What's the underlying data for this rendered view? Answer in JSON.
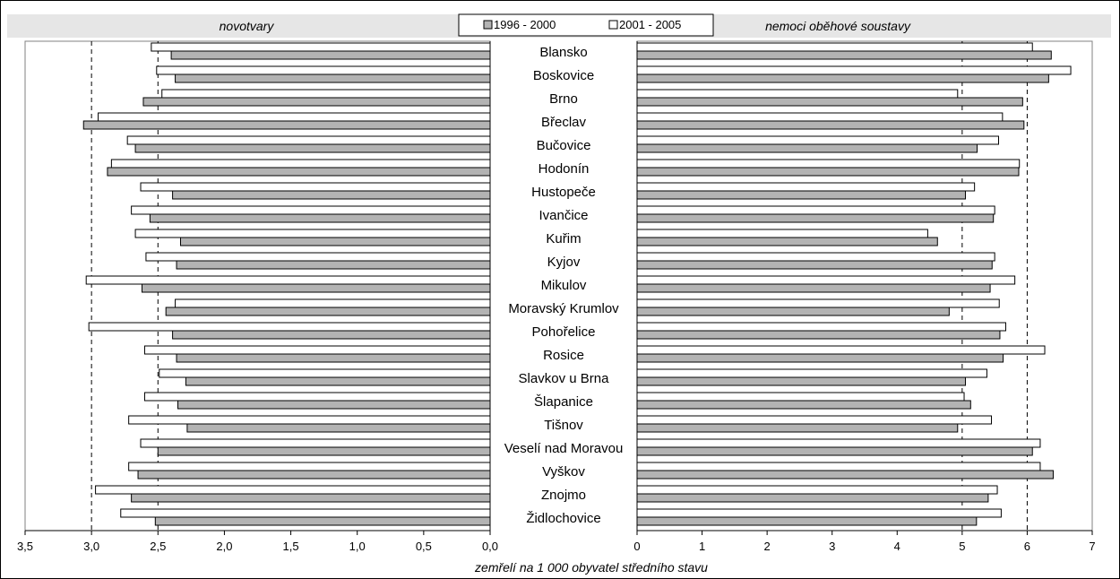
{
  "chart_data": {
    "type": "bar",
    "orientation": "horizontal",
    "xlabel": "zemřelí na 1 000 obyvatel středního stavu",
    "legend": {
      "placement": "top-center",
      "entries": [
        "1996 - 2000",
        "2001 - 2005"
      ]
    },
    "colors": {
      "s1996": "#b3b3b3",
      "s2001": "#ffffff",
      "outline": "#000000",
      "plot_bg": "#e6e6e6"
    },
    "categories": [
      "Blansko",
      "Boskovice",
      "Brno",
      "Břeclav",
      "Bučovice",
      "Hodonín",
      "Hustopeče",
      "Ivančice",
      "Kuřim",
      "Kyjov",
      "Mikulov",
      "Moravský Krumlov",
      "Pohořelice",
      "Rosice",
      "Slavkov u Brna",
      "Šlapanice",
      "Tišnov",
      "Veselí nad Moravou",
      "Vyškov",
      "Znojmo",
      "Židlochovice"
    ],
    "panels": [
      {
        "title": "novotvary",
        "direction": "reversed",
        "xlim": [
          0,
          3.5
        ],
        "ticks": [
          "0,0",
          "0,5",
          "1,0",
          "1,5",
          "2,0",
          "2,5",
          "3,0",
          "3,5"
        ],
        "tick_values": [
          0,
          0.5,
          1,
          1.5,
          2,
          2.5,
          3,
          3.5
        ],
        "reference_lines": [
          2.5,
          3.0
        ],
        "series": [
          {
            "name": "1996 - 2000",
            "values": [
              2.4,
              2.37,
              2.61,
              3.06,
              2.67,
              2.88,
              2.39,
              2.56,
              2.33,
              2.36,
              2.62,
              2.44,
              2.39,
              2.36,
              2.29,
              2.35,
              2.28,
              2.5,
              2.65,
              2.7,
              2.52
            ]
          },
          {
            "name": "2001 - 2005",
            "values": [
              2.55,
              2.51,
              2.47,
              2.95,
              2.73,
              2.85,
              2.63,
              2.7,
              2.67,
              2.59,
              3.04,
              2.37,
              3.02,
              2.6,
              2.49,
              2.6,
              2.72,
              2.63,
              2.72,
              2.97,
              2.78
            ]
          }
        ]
      },
      {
        "title": "nemoci oběhové soustavy",
        "direction": "normal",
        "xlim": [
          0,
          7
        ],
        "ticks": [
          "0",
          "1",
          "2",
          "3",
          "4",
          "5",
          "6",
          "7"
        ],
        "tick_values": [
          0,
          1,
          2,
          3,
          4,
          5,
          6,
          7
        ],
        "reference_lines": [
          5,
          6
        ],
        "series": [
          {
            "name": "1996 - 2000",
            "values": [
              6.37,
              6.33,
              5.93,
              5.95,
              5.23,
              5.87,
              5.05,
              5.48,
              4.62,
              5.46,
              5.43,
              4.8,
              5.58,
              5.63,
              5.05,
              5.13,
              4.93,
              6.08,
              6.4,
              5.4,
              5.22
            ]
          },
          {
            "name": "2001 - 2005",
            "values": [
              6.08,
              6.67,
              4.93,
              5.62,
              5.56,
              5.88,
              5.19,
              5.5,
              4.47,
              5.5,
              5.81,
              5.57,
              5.67,
              6.27,
              5.38,
              5.03,
              5.45,
              6.2,
              6.2,
              5.54,
              5.6
            ]
          }
        ]
      }
    ]
  }
}
